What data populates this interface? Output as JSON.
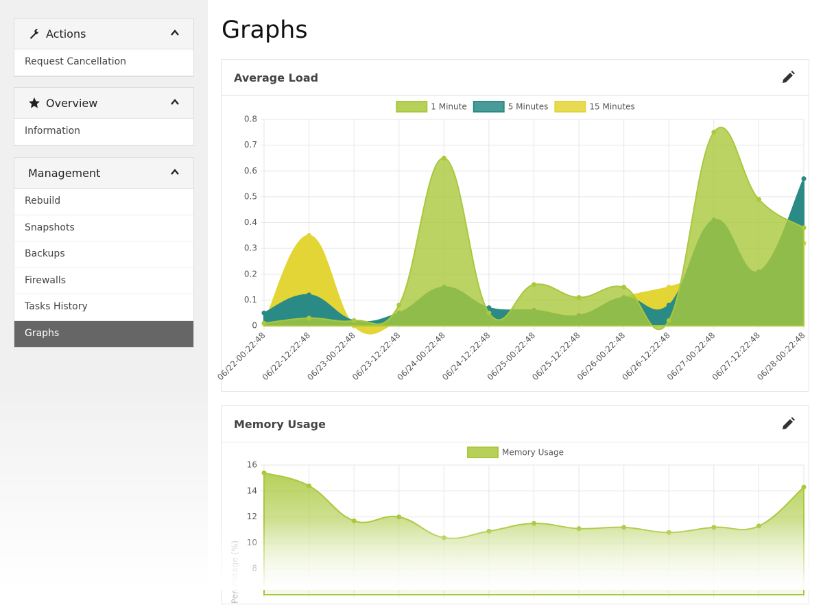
{
  "sidebar": {
    "panels": [
      {
        "title": "Actions",
        "items": [
          "Request Cancellation"
        ]
      },
      {
        "title": "Overview",
        "items": [
          "Information"
        ]
      },
      {
        "title": "Management",
        "items": [
          "Rebuild",
          "Snapshots",
          "Backups",
          "Firewalls",
          "Tasks History",
          "Graphs"
        ]
      }
    ]
  },
  "page_title": "Graphs",
  "chart_data": [
    {
      "type": "area",
      "title": "Average Load",
      "categories": [
        "06/22-00:22:48",
        "06/22-12:22:48",
        "06/23-00:22:48",
        "06/23-12:22:48",
        "06/24-00:22:48",
        "06/24-12:22:48",
        "06/25-00:22:48",
        "06/25-12:22:48",
        "06/26-00:22:48",
        "06/26-12:22:48",
        "06/27-00:22:48",
        "06/27-12:22:48",
        "06/28-00:22:48"
      ],
      "series": [
        {
          "name": "1 Minute",
          "color": "#a9c83c",
          "values": [
            0.01,
            0.03,
            0.02,
            0.08,
            0.65,
            0.05,
            0.16,
            0.11,
            0.15,
            0.02,
            0.75,
            0.49,
            0.38
          ]
        },
        {
          "name": "5 Minutes",
          "color": "#2a8a85",
          "values": [
            0.05,
            0.12,
            0.02,
            0.05,
            0.15,
            0.07,
            0.06,
            0.04,
            0.11,
            0.08,
            0.41,
            0.21,
            0.57
          ]
        },
        {
          "name": "15 Minutes",
          "color": "#e2d535",
          "values": [
            0.01,
            0.35,
            0,
            0.02,
            0.15,
            0.05,
            0.06,
            0.04,
            0.11,
            0.15,
            0.2,
            0.21,
            0.32
          ]
        }
      ],
      "ylim": [
        0,
        0.8
      ],
      "yticks": [
        0,
        0.1,
        0.2,
        0.3,
        0.4,
        0.5,
        0.6,
        0.7,
        0.8
      ],
      "grid": true,
      "legend": "top"
    },
    {
      "type": "area",
      "title": "Memory Usage",
      "y_label": "Percentage (%)",
      "series": [
        {
          "name": "Memory Usage",
          "color": "#a9c83c",
          "values": [
            15.4,
            14.4,
            11.7,
            12.0,
            10.4,
            10.9,
            11.5,
            11.1,
            11.2,
            10.8,
            11.2,
            11.3,
            14.3
          ]
        }
      ],
      "ylim": [
        6,
        16
      ],
      "yticks": [
        8,
        10,
        12,
        14,
        16
      ],
      "grid": true,
      "legend": "top"
    }
  ]
}
